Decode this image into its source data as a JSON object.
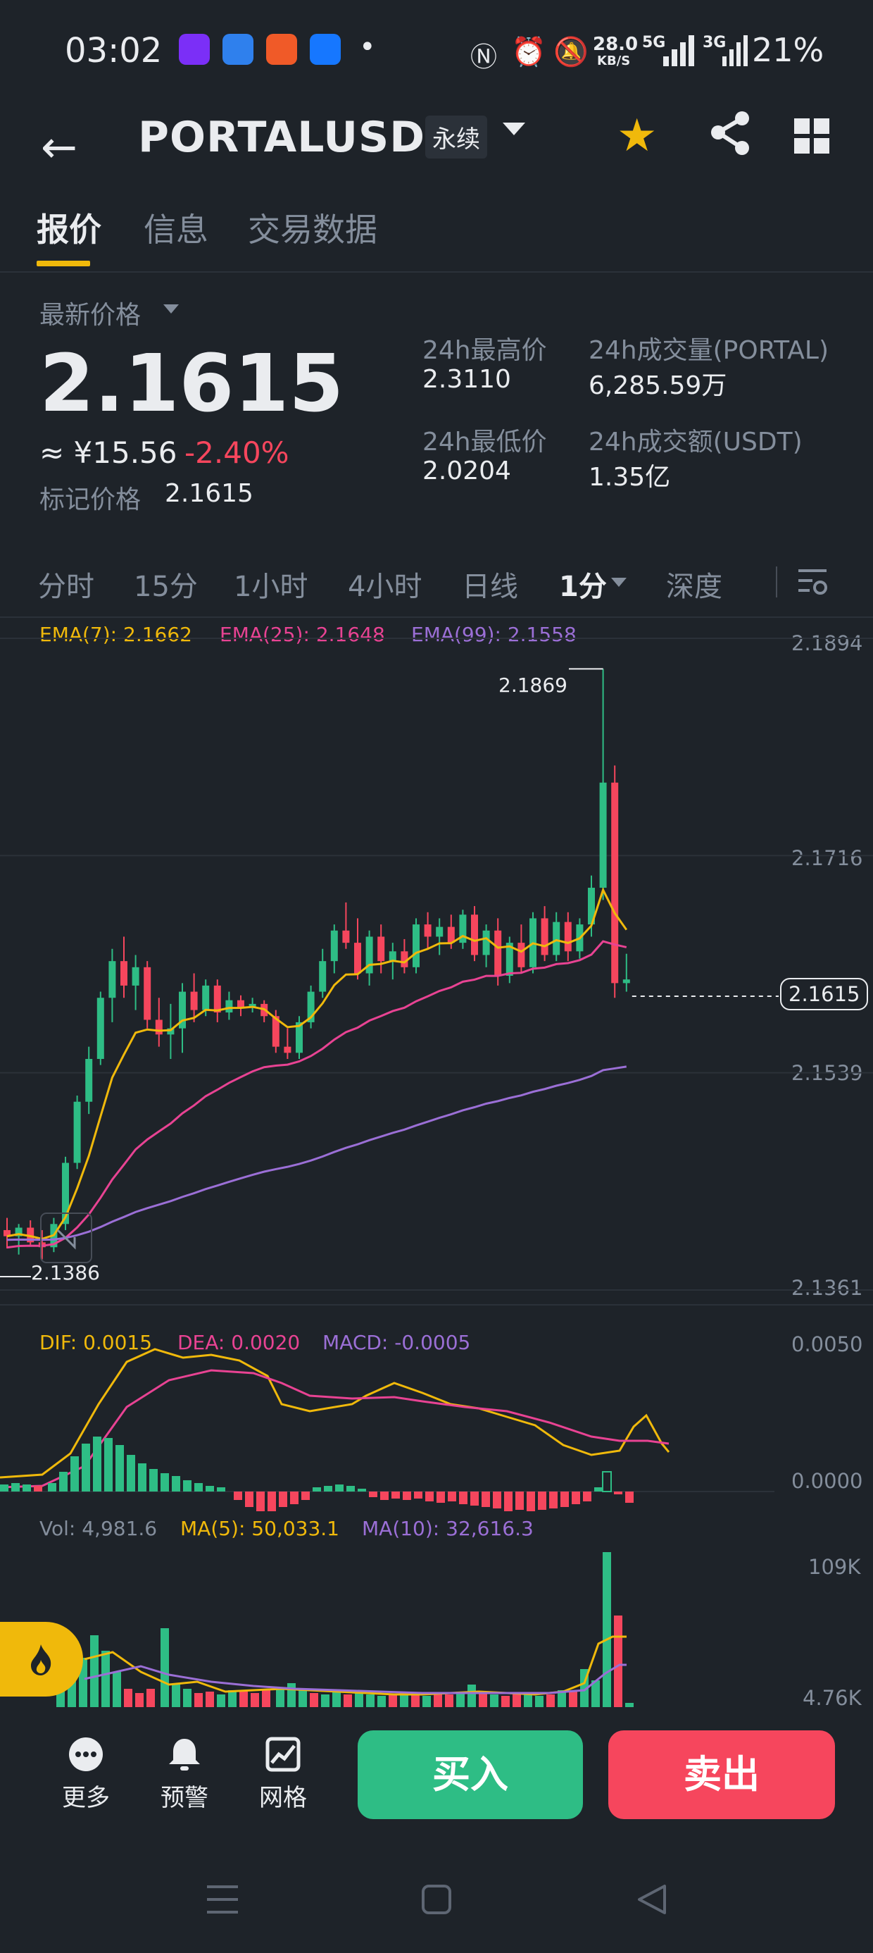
{
  "status_bar": {
    "time": "03:02",
    "network_speed_value": "28.0",
    "network_speed_unit": "KB/S",
    "signal_5g": "5G",
    "signal_3g": "3G",
    "battery": "21%"
  },
  "header": {
    "back_icon": "back-arrow-icon",
    "title": "PORTALUSDT",
    "contract_type": "永续",
    "favorite_icon": "star-icon",
    "share_icon": "share-icon",
    "menu_icon": "grid-icon"
  },
  "tabs": [
    {
      "label": "报价",
      "active": true
    },
    {
      "label": "信息",
      "active": false
    },
    {
      "label": "交易数据",
      "active": false
    }
  ],
  "ticker": {
    "last_price_label": "最新价格",
    "last_price": "2.1615",
    "fiat_price": "≈ ¥15.56",
    "change_pct": "-2.40%",
    "mark_price_label": "标记价格",
    "mark_price": "2.1615",
    "high_label": "24h最高价",
    "high": "2.3110",
    "low_label": "24h最低价",
    "low": "2.0204",
    "vol_label": "24h成交量(PORTAL)",
    "vol": "6,285.59万",
    "turnover_label": "24h成交额(USDT)",
    "turnover": "1.35亿"
  },
  "timeframes": [
    {
      "label": "分时",
      "active": false
    },
    {
      "label": "15分",
      "active": false
    },
    {
      "label": "1小时",
      "active": false
    },
    {
      "label": "4小时",
      "active": false
    },
    {
      "label": "日线",
      "active": false
    },
    {
      "label": "1分",
      "active": true
    },
    {
      "label": "深度",
      "active": false
    }
  ],
  "colors": {
    "up": "#2ebd85",
    "down": "#f6465d",
    "ema7": "#f0b90b",
    "ema25": "#e84393",
    "ema99": "#9b6fd6",
    "accent": "#f0b90b"
  },
  "chart_data": [
    {
      "type": "candlestick",
      "legend": {
        "ema7": "EMA(7): 2.1662",
        "ema25": "EMA(25): 2.1648",
        "ema99": "EMA(99): 2.1558"
      },
      "y_ticks": [
        "2.1894",
        "2.1716",
        "2.1539",
        "2.1361"
      ],
      "ylim": [
        2.1361,
        2.1894
      ],
      "current_price_label": "2.1615",
      "current_price": 2.1615,
      "max_label": "2.1869",
      "max_value": 2.1869,
      "min_label": "2.1386",
      "min_value": 2.1386,
      "candles": [
        [
          2.141,
          2.142,
          2.1395,
          2.1405
        ],
        [
          2.1405,
          2.1415,
          2.139,
          2.1412
        ],
        [
          2.1412,
          2.1418,
          2.1398,
          2.14
        ],
        [
          2.14,
          2.141,
          2.1386,
          2.1396
        ],
        [
          2.1396,
          2.142,
          2.1392,
          2.1415
        ],
        [
          2.1415,
          2.147,
          2.141,
          2.1465
        ],
        [
          2.1465,
          2.152,
          2.146,
          2.1515
        ],
        [
          2.1515,
          2.156,
          2.1505,
          2.155
        ],
        [
          2.155,
          2.1605,
          2.1545,
          2.16
        ],
        [
          2.16,
          2.164,
          2.158,
          2.163
        ],
        [
          2.163,
          2.165,
          2.16,
          2.161
        ],
        [
          2.161,
          2.1635,
          2.159,
          2.1625
        ],
        [
          2.1625,
          2.163,
          2.1575,
          2.1582
        ],
        [
          2.1582,
          2.16,
          2.156,
          2.157
        ],
        [
          2.157,
          2.1595,
          2.155,
          2.1575
        ],
        [
          2.1575,
          2.1612,
          2.1555,
          2.1605
        ],
        [
          2.1605,
          2.162,
          2.158,
          2.159
        ],
        [
          2.159,
          2.1615,
          2.1585,
          2.161
        ],
        [
          2.161,
          2.1615,
          2.158,
          2.1588
        ],
        [
          2.1588,
          2.1605,
          2.1582,
          2.1598
        ],
        [
          2.1598,
          2.1602,
          2.1585,
          2.1592
        ],
        [
          2.1592,
          2.16,
          2.1588,
          2.1595
        ],
        [
          2.1595,
          2.1598,
          2.158,
          2.1585
        ],
        [
          2.1585,
          2.159,
          2.1555,
          2.156
        ],
        [
          2.156,
          2.1575,
          2.155,
          2.1555
        ],
        [
          2.1555,
          2.1585,
          2.155,
          2.158
        ],
        [
          2.158,
          2.161,
          2.1575,
          2.1605
        ],
        [
          2.1605,
          2.164,
          2.16,
          2.163
        ],
        [
          2.163,
          2.166,
          2.162,
          2.1655
        ],
        [
          2.1655,
          2.1678,
          2.164,
          2.1645
        ],
        [
          2.1645,
          2.1665,
          2.1615,
          2.162
        ],
        [
          2.162,
          2.1655,
          2.161,
          2.165
        ],
        [
          2.165,
          2.166,
          2.162,
          2.163
        ],
        [
          2.163,
          2.1645,
          2.1615,
          2.1638
        ],
        [
          2.1638,
          2.1648,
          2.162,
          2.1625
        ],
        [
          2.1625,
          2.1665,
          2.162,
          2.166
        ],
        [
          2.166,
          2.167,
          2.164,
          2.165
        ],
        [
          2.165,
          2.1665,
          2.1635,
          2.1658
        ],
        [
          2.1658,
          2.1668,
          2.164,
          2.1645
        ],
        [
          2.1645,
          2.1672,
          2.164,
          2.1668
        ],
        [
          2.1668,
          2.1675,
          2.163,
          2.1635
        ],
        [
          2.1635,
          2.166,
          2.1625,
          2.1655
        ],
        [
          2.1655,
          2.1665,
          2.161,
          2.1618
        ],
        [
          2.1618,
          2.165,
          2.1612,
          2.1645
        ],
        [
          2.1645,
          2.166,
          2.162,
          2.1625
        ],
        [
          2.1625,
          2.167,
          2.162,
          2.1665
        ],
        [
          2.1665,
          2.1675,
          2.163,
          2.1635
        ],
        [
          2.1635,
          2.167,
          2.163,
          2.1662
        ],
        [
          2.1662,
          2.167,
          2.163,
          2.1638
        ],
        [
          2.1638,
          2.1665,
          2.1632,
          2.166
        ],
        [
          2.166,
          2.17,
          2.165,
          2.169
        ],
        [
          2.169,
          2.1869,
          2.168,
          2.1776
        ],
        [
          2.1776,
          2.179,
          2.16,
          2.1612
        ],
        [
          2.1612,
          2.1636,
          2.1605,
          2.1615
        ]
      ]
    },
    {
      "type": "line",
      "legend": {
        "dif": "DIF: 0.0015",
        "dea": "DEA: 0.0020",
        "macd": "MACD: -0.0005"
      },
      "y_ticks": [
        "0.0050",
        "0.0000"
      ]
    },
    {
      "type": "bar",
      "legend": {
        "vol": "Vol: 4,981.6",
        "ma5": "MA(5): 50,033.1",
        "ma10": "MA(10): 32,616.3"
      },
      "y_ticks": [
        "109K",
        "4.76K"
      ]
    }
  ],
  "bottom_bar": {
    "more": "更多",
    "alert": "预警",
    "grid": "网格",
    "buy": "买入",
    "sell": "卖出"
  }
}
